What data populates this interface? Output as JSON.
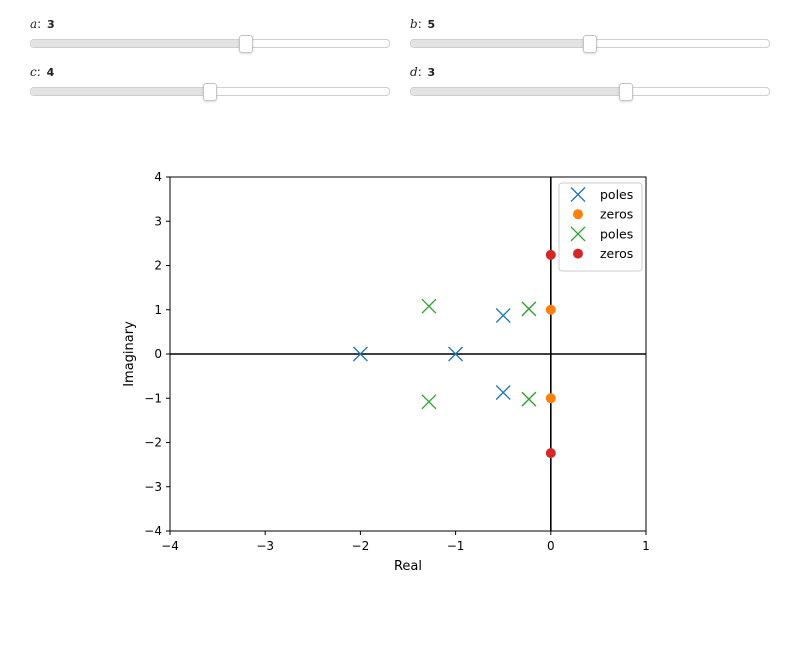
{
  "controls": {
    "sliders": [
      {
        "name": "a",
        "value": "3",
        "fraction": 0.6
      },
      {
        "name": "b",
        "value": "5",
        "fraction": 0.5
      },
      {
        "name": "c",
        "value": "4",
        "fraction": 0.5
      },
      {
        "name": "d",
        "value": "3",
        "fraction": 0.6
      }
    ]
  },
  "chart_data": {
    "type": "scatter",
    "xlabel": "Real",
    "ylabel": "Imaginary",
    "xlim": [
      -4,
      1
    ],
    "ylim": [
      -4,
      4
    ],
    "xticks": [
      -4,
      -3,
      -2,
      -1,
      0,
      1
    ],
    "yticks": [
      -4,
      -3,
      -2,
      -1,
      0,
      1,
      2,
      3,
      4
    ],
    "xtick_labels": [
      "−4",
      "−3",
      "−2",
      "−1",
      "0",
      "1"
    ],
    "ytick_labels": [
      "−4",
      "−3",
      "−2",
      "−1",
      "0",
      "1",
      "2",
      "3",
      "4"
    ],
    "grid": false,
    "axis_lines_at_zero": true,
    "legend_position": "top-right",
    "series": [
      {
        "name": "poles",
        "marker": "x",
        "color": "#1f77b4",
        "points": [
          [
            -2,
            0
          ],
          [
            -1,
            0
          ],
          [
            -0.5,
            0.87
          ],
          [
            -0.5,
            -0.87
          ]
        ]
      },
      {
        "name": "zeros",
        "marker": "o",
        "color": "#ff7f0e",
        "points": [
          [
            0,
            1
          ],
          [
            0,
            -1
          ]
        ]
      },
      {
        "name": "poles",
        "marker": "x",
        "color": "#2ca02c",
        "points": [
          [
            -1.28,
            1.08
          ],
          [
            -1.28,
            -1.08
          ],
          [
            -0.23,
            1.02
          ],
          [
            -0.23,
            -1.02
          ]
        ]
      },
      {
        "name": "zeros",
        "marker": "o",
        "color": "#d62728",
        "points": [
          [
            0,
            2.24
          ],
          [
            0,
            -2.24
          ]
        ]
      }
    ]
  }
}
